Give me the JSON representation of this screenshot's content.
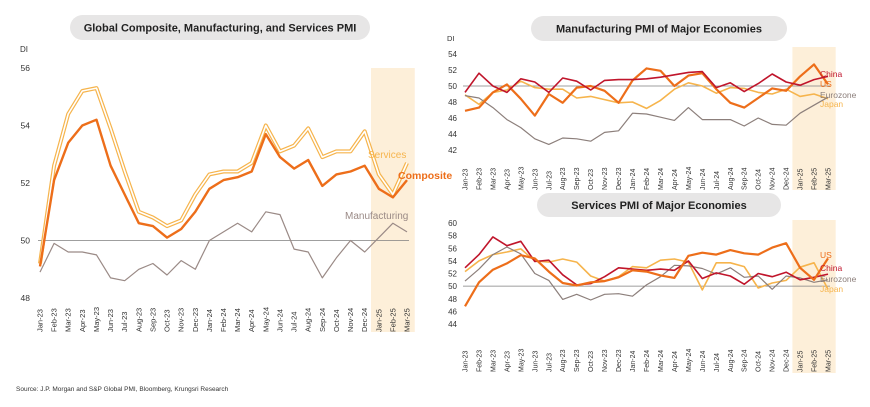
{
  "source": "Source: J.P. Morgan and S&P Global PMI, Bloomberg, Krungsri Research",
  "colors": {
    "composite": "#ED6E1A",
    "services": "#F6B44C",
    "manufacturing": "#9A8A86",
    "china": "#C0152B",
    "us": "#ED6E1A",
    "eurozone": "#8C7F7B",
    "japan": "#F6B44C",
    "highlight": "#FDEFD9",
    "pill": "#E7E6E6"
  },
  "chart_data": [
    {
      "type": "line",
      "title": "Global Composite, Manufacturing, and Services PMI",
      "ylabel": "DI",
      "ylim": [
        48,
        56
      ],
      "yticks": [
        48,
        50,
        52,
        54,
        56
      ],
      "baseline": 50,
      "highlight": [
        "Jan-25",
        "Mar-25"
      ],
      "categories": [
        "Jan-23",
        "Feb-23",
        "Mar-23",
        "Apr-23",
        "May-23",
        "Jun-23",
        "Jul-23",
        "Aug-23",
        "Sep-23",
        "Oct-23",
        "Nov-23",
        "Dec-23",
        "Jan-24",
        "Feb-24",
        "Mar-24",
        "Apr-24",
        "May-24",
        "Jun-24",
        "Jul-24",
        "Aug-24",
        "Sep-24",
        "Oct-24",
        "Nov-24",
        "Dec-24",
        "Jan-25",
        "Feb-25",
        "Mar-25"
      ],
      "xticks": [
        "Jan-23",
        "Mar-23",
        "May-23",
        "Jul-23",
        "Sep-23",
        "Nov-23",
        "Jan-24",
        "Mar-24",
        "May-24",
        "Jul-24",
        "Sep-24",
        "Nov-24",
        "Jan-25",
        "Mar-25"
      ],
      "xtickTop": [
        "Feb-23",
        "Apr-23",
        "Jun-23",
        "Aug-23",
        "Oct-23",
        "Dec-23",
        "Feb-24",
        "Apr-24",
        "Jun-24",
        "Aug-24",
        "Oct-24",
        "Dec-24",
        "Feb-25"
      ],
      "series": [
        {
          "name": "Services",
          "color": "#F6B44C",
          "width": 2.4,
          "outline": true,
          "values": [
            49.2,
            52.6,
            54.4,
            55.2,
            55.3,
            53.9,
            52.4,
            51.0,
            50.8,
            50.5,
            50.7,
            51.6,
            52.3,
            52.4,
            52.4,
            52.7,
            54.0,
            53.1,
            53.3,
            53.9,
            52.9,
            53.1,
            53.1,
            53.8,
            52.3,
            51.6,
            52.7
          ]
        },
        {
          "name": "Composite",
          "color": "#ED6E1A",
          "width": 2.4,
          "values": [
            49.1,
            52.1,
            53.4,
            54.0,
            54.2,
            52.6,
            51.6,
            50.6,
            50.5,
            50.1,
            50.4,
            51.0,
            51.8,
            52.1,
            52.2,
            52.4,
            53.7,
            52.9,
            52.5,
            52.8,
            51.9,
            52.3,
            52.4,
            52.6,
            51.8,
            51.5,
            52.1
          ]
        },
        {
          "name": "Manufacturing",
          "color": "#9A8A86",
          "width": 1.2,
          "values": [
            48.9,
            49.9,
            49.6,
            49.6,
            49.5,
            48.7,
            48.6,
            49.0,
            49.2,
            48.8,
            49.3,
            49.0,
            50.0,
            50.3,
            50.6,
            50.3,
            51.0,
            50.9,
            49.7,
            49.6,
            48.7,
            49.4,
            50.0,
            49.6,
            50.1,
            50.6,
            50.3
          ]
        }
      ],
      "annotations": [
        {
          "text": "Services",
          "series": "Services"
        },
        {
          "text": "Composite",
          "series": "Composite"
        },
        {
          "text": "Manufacturing",
          "series": "Manufacturing"
        }
      ]
    },
    {
      "type": "line",
      "title": "Manufacturing PMI of Major Economies",
      "ylabel": "DI",
      "ylim": [
        42,
        54
      ],
      "yticks": [
        42,
        44,
        46,
        48,
        50,
        52,
        54
      ],
      "baseline": 50,
      "highlight": [
        "Jan-25",
        "Mar-25"
      ],
      "categories": [
        "Jan-23",
        "Feb-23",
        "Mar-23",
        "Apr-23",
        "May-23",
        "Jun-23",
        "Jul-23",
        "Aug-23",
        "Sep-23",
        "Oct-23",
        "Nov-23",
        "Dec-23",
        "Jan-24",
        "Feb-24",
        "Mar-24",
        "Apr-24",
        "May-24",
        "Jun-24",
        "Jul-24",
        "Aug-24",
        "Sep-24",
        "Oct-24",
        "Nov-24",
        "Dec-24",
        "Jan-25",
        "Feb-25",
        "Mar-25"
      ],
      "xticks": [
        "Jan-23",
        "Feb-23",
        "Mar-23",
        "Apr-23",
        "May-23",
        "Jun-23",
        "Jul-23",
        "Aug-23",
        "Sep-23",
        "Oct-23",
        "Nov-23",
        "Dec-23",
        "Jan-24",
        "Feb-24",
        "Mar-24",
        "Apr-24",
        "May-24",
        "Jun-24",
        "Jul-24",
        "Aug-24",
        "Sep-24",
        "Oct-24",
        "Nov-24",
        "Dec-24",
        "Jan-25",
        "Feb-25",
        "Mar-25"
      ],
      "series": [
        {
          "name": "Japan",
          "color": "#F6B44C",
          "width": 1.6,
          "values": [
            48.9,
            47.7,
            49.2,
            49.5,
            50.6,
            49.8,
            49.6,
            49.6,
            48.5,
            48.7,
            48.3,
            47.9,
            48.0,
            47.2,
            48.2,
            49.6,
            50.4,
            50.0,
            49.1,
            49.8,
            49.7,
            49.2,
            49.0,
            49.6,
            48.7,
            49.0,
            48.4
          ]
        },
        {
          "name": "Eurozone",
          "color": "#8C7F7B",
          "width": 1.2,
          "values": [
            48.8,
            48.5,
            47.3,
            45.8,
            44.8,
            43.4,
            42.7,
            43.5,
            43.4,
            43.1,
            44.2,
            44.4,
            46.6,
            46.5,
            46.1,
            45.7,
            47.3,
            45.8,
            45.8,
            45.8,
            45.0,
            46.0,
            45.2,
            45.1,
            46.6,
            47.6,
            48.6
          ]
        },
        {
          "name": "US",
          "color": "#ED6E1A",
          "width": 2.2,
          "values": [
            46.9,
            47.3,
            49.2,
            50.2,
            48.4,
            46.3,
            49.0,
            47.9,
            49.8,
            50.0,
            49.4,
            47.9,
            50.7,
            52.2,
            51.9,
            50.0,
            51.3,
            51.6,
            49.6,
            47.9,
            47.3,
            48.5,
            49.7,
            49.4,
            51.2,
            52.7,
            50.2
          ]
        },
        {
          "name": "China",
          "color": "#C0152B",
          "width": 1.6,
          "values": [
            49.2,
            51.6,
            50.0,
            49.2,
            50.9,
            50.5,
            49.2,
            51.0,
            50.6,
            49.5,
            50.7,
            50.8,
            50.8,
            50.9,
            51.1,
            51.4,
            51.7,
            51.8,
            49.8,
            50.4,
            49.3,
            50.3,
            51.5,
            50.5,
            50.1,
            50.8,
            51.2
          ]
        }
      ],
      "annotations": [
        {
          "text": "China",
          "series": "China"
        },
        {
          "text": "US",
          "series": "US"
        },
        {
          "text": "Eurozone",
          "series": "Eurozone"
        },
        {
          "text": "Japan",
          "series": "Japan"
        }
      ]
    },
    {
      "type": "line",
      "title": "Services PMI of Major Economies",
      "ylabel": "",
      "ylim": [
        44,
        60
      ],
      "yticks": [
        44,
        46,
        48,
        50,
        52,
        54,
        56,
        58,
        60
      ],
      "baseline": 50,
      "highlight": [
        "Jan-25",
        "Mar-25"
      ],
      "categories": [
        "Jan-23",
        "Feb-23",
        "Mar-23",
        "Apr-23",
        "May-23",
        "Jun-23",
        "Jul-23",
        "Aug-23",
        "Sep-23",
        "Oct-23",
        "Nov-23",
        "Dec-23",
        "Jan-24",
        "Feb-24",
        "Mar-24",
        "Apr-24",
        "May-24",
        "Jun-24",
        "Jul-24",
        "Aug-24",
        "Sep-24",
        "Oct-24",
        "Nov-24",
        "Dec-24",
        "Jan-25",
        "Feb-25",
        "Mar-25"
      ],
      "xticks": [
        "Jan-23",
        "Feb-23",
        "Mar-23",
        "Apr-23",
        "May-23",
        "Jun-23",
        "Jul-23",
        "Aug-23",
        "Sep-23",
        "Oct-23",
        "Nov-23",
        "Dec-23",
        "Jan-24",
        "Feb-24",
        "Mar-24",
        "Apr-24",
        "May-24",
        "Jun-24",
        "Jul-24",
        "Aug-24",
        "Sep-24",
        "Oct-24",
        "Nov-24",
        "Dec-24",
        "Jan-25",
        "Feb-25",
        "Mar-25"
      ],
      "series": [
        {
          "name": "Japan",
          "color": "#F6B44C",
          "width": 1.6,
          "values": [
            52.3,
            54.0,
            55.0,
            55.4,
            55.9,
            54.0,
            53.8,
            54.3,
            53.8,
            51.6,
            50.8,
            51.5,
            53.1,
            52.9,
            54.1,
            54.3,
            53.8,
            49.4,
            53.7,
            53.7,
            53.1,
            49.7,
            50.5,
            50.9,
            53.0,
            53.7,
            49.5
          ]
        },
        {
          "name": "Eurozone",
          "color": "#8C7F7B",
          "width": 1.2,
          "values": [
            50.8,
            52.7,
            55.0,
            56.2,
            55.1,
            52.0,
            50.9,
            47.9,
            48.7,
            47.8,
            48.7,
            48.8,
            48.4,
            50.2,
            51.5,
            53.3,
            53.2,
            52.8,
            51.9,
            52.9,
            51.4,
            51.6,
            49.5,
            51.6,
            51.3,
            50.6,
            51.0
          ]
        },
        {
          "name": "China",
          "color": "#C0152B",
          "width": 1.6,
          "values": [
            52.9,
            55.0,
            57.8,
            56.4,
            57.1,
            53.9,
            54.1,
            51.8,
            50.2,
            50.4,
            51.5,
            52.9,
            52.7,
            52.5,
            52.7,
            52.5,
            54.0,
            51.2,
            52.1,
            51.6,
            50.3,
            52.0,
            51.5,
            52.2,
            51.0,
            51.4,
            51.9
          ]
        },
        {
          "name": "US",
          "color": "#ED6E1A",
          "width": 2.2,
          "values": [
            46.8,
            50.6,
            52.6,
            53.6,
            54.9,
            54.4,
            52.3,
            50.5,
            50.1,
            50.6,
            50.8,
            51.4,
            52.5,
            52.3,
            51.7,
            51.3,
            54.8,
            55.3,
            55.0,
            55.7,
            55.2,
            55.0,
            56.1,
            56.8,
            52.9,
            51.0,
            54.4
          ]
        }
      ],
      "annotations": [
        {
          "text": "US",
          "series": "US"
        },
        {
          "text": "China",
          "series": "China"
        },
        {
          "text": "Eurozone",
          "series": "Eurozone"
        },
        {
          "text": "Japan",
          "series": "Japan"
        }
      ]
    }
  ]
}
